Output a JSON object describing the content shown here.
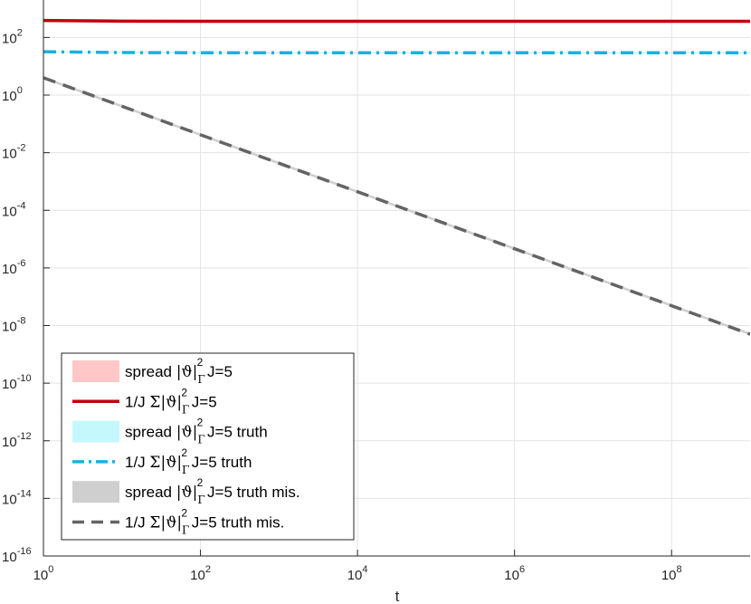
{
  "chart_data": {
    "type": "line",
    "xlabel": "t",
    "ylabel": "",
    "xscale": "log",
    "yscale": "log",
    "xlim": [
      1,
      1000000000
    ],
    "ylim": [
      1e-16,
      2000
    ],
    "grid": true,
    "legend_position": "bottom-left",
    "x_ticks": [
      {
        "base": "10",
        "exp": "0"
      },
      {
        "base": "10",
        "exp": "2"
      },
      {
        "base": "10",
        "exp": "4"
      },
      {
        "base": "10",
        "exp": "6"
      },
      {
        "base": "10",
        "exp": "8"
      }
    ],
    "y_ticks": [
      {
        "base": "10",
        "exp": "2"
      },
      {
        "base": "10",
        "exp": "0"
      },
      {
        "base": "10",
        "exp": "-2"
      },
      {
        "base": "10",
        "exp": "-4"
      },
      {
        "base": "10",
        "exp": "-6"
      },
      {
        "base": "10",
        "exp": "-8"
      },
      {
        "base": "10",
        "exp": "-10"
      },
      {
        "base": "10",
        "exp": "-12"
      },
      {
        "base": "10",
        "exp": "-14"
      },
      {
        "base": "10",
        "exp": "-16"
      }
    ],
    "series": [
      {
        "name": "spread |ϑ|Γ2 J=5",
        "legend": {
          "prefix": "spread ",
          "suffix": " J=5"
        },
        "kind": "band",
        "color": "#ffc7c7",
        "x": [
          1,
          10,
          100,
          1000000000
        ],
        "lower": [
          380,
          360,
          355,
          355
        ],
        "upper": [
          400,
          380,
          375,
          375
        ]
      },
      {
        "name": "1/J Σ|ϑ|Γ2 J=5",
        "legend": {
          "prefix": "1/J Σ",
          "suffix": " J=5"
        },
        "kind": "line",
        "style": "solid",
        "color": "#c0000f",
        "x": [
          1,
          10,
          100,
          1000000000
        ],
        "y": [
          390,
          370,
          365,
          365
        ]
      },
      {
        "name": "spread |ϑ|Γ2 J=5 truth",
        "legend": {
          "prefix": "spread ",
          "suffix": " J=5 truth"
        },
        "kind": "band",
        "color": "#c4f8fc",
        "x": [
          1,
          10,
          100,
          1000000000
        ],
        "lower": [
          31,
          29,
          28,
          28
        ],
        "upper": [
          34,
          32,
          31,
          31
        ]
      },
      {
        "name": "1/J Σ|ϑ|Γ2 J=5 truth",
        "legend": {
          "prefix": "1/J Σ",
          "suffix": " J=5 truth"
        },
        "kind": "line",
        "style": "dashdot",
        "color": "#1ab0e0",
        "x": [
          1,
          10,
          100,
          1000000000
        ],
        "y": [
          32,
          30,
          29.5,
          29.5
        ]
      },
      {
        "name": "spread |ϑ|Γ2 J=5 truth mis.",
        "legend": {
          "prefix": "spread ",
          "suffix": " J=5 truth mis."
        },
        "kind": "band",
        "color": "#cfcfcf",
        "x": [
          1,
          1000000000
        ],
        "lower": [
          3.6,
          4.6e-09
        ],
        "upper": [
          4.4,
          5.6e-09
        ]
      },
      {
        "name": "1/J Σ|ϑ|Γ2 J=5 truth mis.",
        "legend": {
          "prefix": "1/J Σ",
          "suffix": " J=5 truth mis."
        },
        "kind": "line",
        "style": "dashed",
        "color": "#646464",
        "x": [
          1,
          1000000000
        ],
        "y": [
          4,
          5e-09
        ]
      }
    ]
  }
}
